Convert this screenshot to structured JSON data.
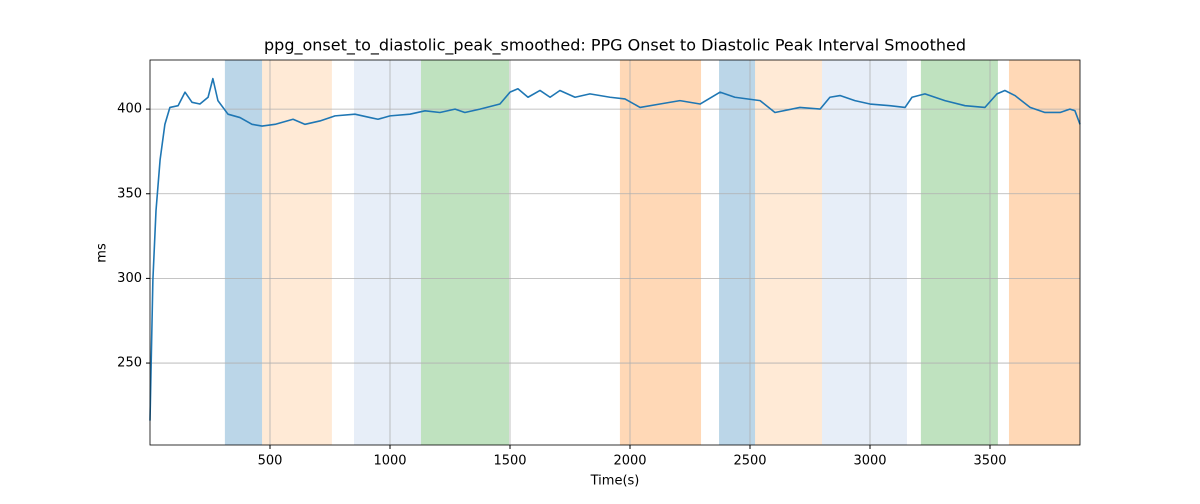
{
  "chart_data": {
    "type": "line",
    "title": "ppg_onset_to_diastolic_peak_smoothed: PPG Onset to Diastolic Peak Interval Smoothed",
    "x_label": "Time(s)",
    "y_label": "ms",
    "x": [
      0,
      12,
      25,
      42,
      62,
      83,
      117,
      146,
      175,
      208,
      242,
      262,
      283,
      325,
      375,
      425,
      467,
      521,
      596,
      646,
      708,
      771,
      854,
      917,
      950,
      1000,
      1083,
      1146,
      1208,
      1271,
      1312,
      1375,
      1458,
      1500,
      1533,
      1575,
      1625,
      1667,
      1708,
      1771,
      1833,
      1917,
      1979,
      2042,
      2125,
      2208,
      2292,
      2375,
      2437,
      2542,
      2604,
      2708,
      2792,
      2833,
      2875,
      2937,
      3000,
      3083,
      3146,
      3175,
      3229,
      3312,
      3396,
      3479,
      3529,
      3562,
      3604,
      3667,
      3729,
      3792,
      3833,
      3854,
      3875
    ],
    "series": [
      {
        "color": "#1f77b4",
        "values": [
          216,
          299,
          340,
          370,
          391,
          401,
          402,
          410,
          404,
          403,
          407,
          418,
          405,
          397,
          395,
          391,
          390,
          391,
          394,
          391,
          393,
          396,
          397,
          395,
          394,
          396,
          397,
          399,
          398,
          400,
          398,
          400,
          403,
          410,
          412,
          407,
          411,
          407,
          411,
          407,
          409,
          407,
          406,
          401,
          403,
          405,
          403,
          410,
          407,
          405,
          398,
          401,
          400,
          407,
          408,
          405,
          403,
          402,
          401,
          407,
          409,
          405,
          402,
          401,
          409,
          411,
          408,
          401,
          398,
          398,
          400,
          399,
          391
        ]
      }
    ],
    "spans": [
      {
        "x0": 312,
        "x1": 467,
        "color": "#1f77b4"
      },
      {
        "x0": 467,
        "x1": 758,
        "color": "#ffbb78"
      },
      {
        "x0": 850,
        "x1": 1129,
        "color": "#aec7e8"
      },
      {
        "x0": 1129,
        "x1": 1496,
        "color": "#2ca02c"
      },
      {
        "x0": 1958,
        "x1": 2296,
        "color": "#ff7f0e"
      },
      {
        "x0": 2371,
        "x1": 2521,
        "color": "#1f77b4"
      },
      {
        "x0": 2521,
        "x1": 2800,
        "color": "#ffbb78"
      },
      {
        "x0": 2800,
        "x1": 3154,
        "color": "#aec7e8"
      },
      {
        "x0": 3212,
        "x1": 3533,
        "color": "#2ca02c"
      },
      {
        "x0": 3579,
        "x1": 3875,
        "color": "#ff7f0e"
      }
    ],
    "xlim": [
      0,
      3875
    ],
    "ylim": [
      201.6,
      429
    ],
    "xticks": [
      500,
      1000,
      1500,
      2000,
      2500,
      3000,
      3500
    ],
    "yticks": [
      250,
      300,
      350,
      400
    ],
    "grid": true
  }
}
